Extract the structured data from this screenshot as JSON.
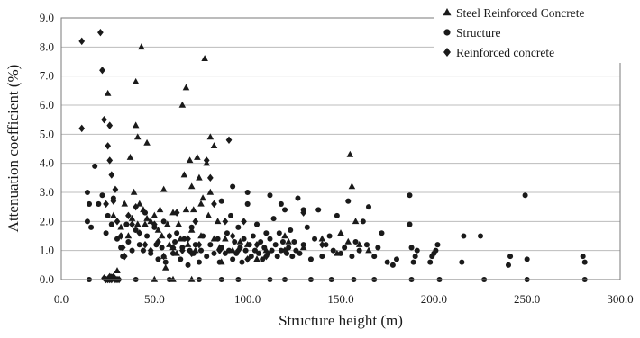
{
  "chart_data": {
    "type": "scatter",
    "xlabel": "Structure height (m)",
    "ylabel": "Attenuation coefficient (%)",
    "xlim": [
      0,
      300
    ],
    "ylim": [
      0,
      9
    ],
    "x_ticks": [
      "0.0",
      "50.0",
      "100.0",
      "150.0",
      "200.0",
      "250.0",
      "300.0"
    ],
    "y_ticks": [
      "0.0",
      "1.0",
      "2.0",
      "3.0",
      "4.0",
      "5.0",
      "6.0",
      "7.0",
      "8.0",
      "9.0"
    ],
    "grid": "horizontal",
    "legend_position": "top-right",
    "series": [
      {
        "name": "Steel Reinforced Concrete",
        "marker": "triangle",
        "color": "#1a1a1a",
        "points": [
          [
            25,
            6.4
          ],
          [
            37,
            4.2
          ],
          [
            38,
            2.1
          ],
          [
            39,
            3.0
          ],
          [
            40,
            5.3
          ],
          [
            40,
            6.8
          ],
          [
            41,
            4.9
          ],
          [
            41,
            1.9
          ],
          [
            42,
            2.6
          ],
          [
            43,
            8.0
          ],
          [
            44,
            2.4
          ],
          [
            45,
            1.9
          ],
          [
            46,
            4.7
          ],
          [
            46,
            2.1
          ],
          [
            48,
            2.0
          ],
          [
            50,
            2.2
          ],
          [
            52,
            1.7
          ],
          [
            53,
            2.4
          ],
          [
            54,
            1.5
          ],
          [
            55,
            3.1
          ],
          [
            55,
            0.8
          ],
          [
            57,
            1.9
          ],
          [
            58,
            1.2
          ],
          [
            60,
            2.3
          ],
          [
            60,
            1.1
          ],
          [
            62,
            0.9
          ],
          [
            63,
            1.9
          ],
          [
            64,
            1.4
          ],
          [
            65,
            6.0
          ],
          [
            66,
            3.6
          ],
          [
            67,
            6.6
          ],
          [
            67,
            2.4
          ],
          [
            68,
            1.2
          ],
          [
            69,
            4.1
          ],
          [
            70,
            1.7
          ],
          [
            70,
            3.2
          ],
          [
            71,
            2.4
          ],
          [
            72,
            1.0
          ],
          [
            73,
            4.2
          ],
          [
            74,
            3.5
          ],
          [
            75,
            2.6
          ],
          [
            75,
            1.5
          ],
          [
            76,
            2.8
          ],
          [
            77,
            7.6
          ],
          [
            78,
            4.0
          ],
          [
            79,
            2.2
          ],
          [
            80,
            4.9
          ],
          [
            80,
            3.0
          ],
          [
            82,
            4.6
          ],
          [
            82,
            1.4
          ],
          [
            84,
            2.0
          ],
          [
            85,
            1.1
          ],
          [
            88,
            1.4
          ],
          [
            92,
            1.0
          ],
          [
            96,
            1.3
          ],
          [
            100,
            1.2
          ],
          [
            105,
            0.7
          ],
          [
            110,
            1.0
          ],
          [
            120,
            1.5
          ],
          [
            122,
            1.3
          ],
          [
            130,
            1.1
          ],
          [
            140,
            1.4
          ],
          [
            148,
            0.9
          ],
          [
            150,
            1.6
          ],
          [
            154,
            1.3
          ],
          [
            155,
            4.3
          ],
          [
            156,
            3.2
          ],
          [
            158,
            2.0
          ],
          [
            160,
            1.2
          ],
          [
            165,
            1.0
          ],
          [
            50,
            0.0
          ],
          [
            60,
            0.0
          ],
          [
            70,
            0.0
          ],
          [
            30,
            0.3
          ],
          [
            32,
            1.8
          ],
          [
            34,
            2.6
          ],
          [
            36,
            1.5
          ],
          [
            28,
            2.2
          ],
          [
            56,
            0.4
          ],
          [
            86,
            0.6
          ]
        ]
      },
      {
        "name": "Structure",
        "marker": "circle",
        "color": "#1a1a1a",
        "points": [
          [
            14,
            2.0
          ],
          [
            14,
            3.0
          ],
          [
            15,
            2.6
          ],
          [
            16,
            1.8
          ],
          [
            18,
            3.9
          ],
          [
            20,
            2.6
          ],
          [
            22,
            2.9
          ],
          [
            24,
            1.6
          ],
          [
            25,
            2.2
          ],
          [
            27,
            1.9
          ],
          [
            28,
            2.8
          ],
          [
            30,
            1.4
          ],
          [
            30,
            0.0
          ],
          [
            32,
            1.1
          ],
          [
            33,
            0.8
          ],
          [
            35,
            1.9
          ],
          [
            36,
            1.3
          ],
          [
            38,
            1.0
          ],
          [
            40,
            1.7
          ],
          [
            42,
            1.2
          ],
          [
            44,
            1.0
          ],
          [
            45,
            2.3
          ],
          [
            46,
            1.5
          ],
          [
            48,
            0.9
          ],
          [
            50,
            1.8
          ],
          [
            51,
            1.2
          ],
          [
            52,
            0.7
          ],
          [
            54,
            1.1
          ],
          [
            55,
            2.0
          ],
          [
            56,
            0.6
          ],
          [
            58,
            1.5
          ],
          [
            60,
            0.9
          ],
          [
            61,
            1.3
          ],
          [
            62,
            1.6
          ],
          [
            64,
            0.7
          ],
          [
            65,
            1.1
          ],
          [
            66,
            1.4
          ],
          [
            68,
            0.5
          ],
          [
            69,
            1.0
          ],
          [
            70,
            1.8
          ],
          [
            71,
            0.9
          ],
          [
            72,
            1.2
          ],
          [
            74,
            0.6
          ],
          [
            75,
            1.0
          ],
          [
            76,
            1.5
          ],
          [
            78,
            0.8
          ],
          [
            80,
            1.2
          ],
          [
            82,
            0.9
          ],
          [
            84,
            1.4
          ],
          [
            85,
            0.6
          ],
          [
            86,
            1.1
          ],
          [
            88,
            0.9
          ],
          [
            89,
            1.6
          ],
          [
            90,
            1.0
          ],
          [
            91,
            2.2
          ],
          [
            92,
            0.7
          ],
          [
            93,
            1.3
          ],
          [
            94,
            0.9
          ],
          [
            95,
            1.8
          ],
          [
            96,
            1.1
          ],
          [
            97,
            0.6
          ],
          [
            98,
            1.4
          ],
          [
            99,
            1.0
          ],
          [
            100,
            2.6
          ],
          [
            101,
            1.2
          ],
          [
            102,
            0.8
          ],
          [
            103,
            1.5
          ],
          [
            104,
            1.0
          ],
          [
            105,
            1.9
          ],
          [
            106,
            0.9
          ],
          [
            107,
            1.3
          ],
          [
            108,
            0.7
          ],
          [
            109,
            1.1
          ],
          [
            110,
            1.6
          ],
          [
            111,
            0.9
          ],
          [
            112,
            1.4
          ],
          [
            113,
            1.0
          ],
          [
            114,
            2.1
          ],
          [
            115,
            1.2
          ],
          [
            116,
            0.8
          ],
          [
            117,
            1.6
          ],
          [
            118,
            1.0
          ],
          [
            119,
            1.3
          ],
          [
            120,
            2.4
          ],
          [
            121,
            0.9
          ],
          [
            122,
            1.1
          ],
          [
            123,
            1.7
          ],
          [
            124,
            0.8
          ],
          [
            125,
            1.3
          ],
          [
            126,
            1.0
          ],
          [
            127,
            2.8
          ],
          [
            128,
            0.9
          ],
          [
            130,
            1.2
          ],
          [
            132,
            1.8
          ],
          [
            134,
            0.7
          ],
          [
            136,
            1.4
          ],
          [
            138,
            2.4
          ],
          [
            140,
            0.8
          ],
          [
            142,
            1.2
          ],
          [
            144,
            1.5
          ],
          [
            146,
            1.0
          ],
          [
            148,
            2.2
          ],
          [
            150,
            0.9
          ],
          [
            152,
            1.1
          ],
          [
            154,
            2.7
          ],
          [
            156,
            0.8
          ],
          [
            158,
            1.3
          ],
          [
            160,
            1.0
          ],
          [
            162,
            2.0
          ],
          [
            164,
            1.2
          ],
          [
            165,
            2.5
          ],
          [
            168,
            0.8
          ],
          [
            170,
            1.1
          ],
          [
            172,
            1.6
          ],
          [
            175,
            0.6
          ],
          [
            178,
            0.5
          ],
          [
            180,
            0.7
          ],
          [
            187,
            2.9
          ],
          [
            187,
            1.9
          ],
          [
            188,
            1.1
          ],
          [
            189,
            0.6
          ],
          [
            190,
            0.8
          ],
          [
            191,
            1.0
          ],
          [
            198,
            0.6
          ],
          [
            199,
            0.8
          ],
          [
            200,
            0.9
          ],
          [
            201,
            1.0
          ],
          [
            202,
            1.2
          ],
          [
            215,
            0.6
          ],
          [
            216,
            1.5
          ],
          [
            225,
            1.5
          ],
          [
            240,
            0.5
          ],
          [
            241,
            0.8
          ],
          [
            249,
            2.9
          ],
          [
            250,
            0.7
          ],
          [
            280,
            0.8
          ],
          [
            281,
            0.6
          ],
          [
            15,
            0.0
          ],
          [
            40,
            0.0
          ],
          [
            58,
            0.0
          ],
          [
            74,
            0.0
          ],
          [
            86,
            0.0
          ],
          [
            95,
            0.0
          ],
          [
            112,
            0.0
          ],
          [
            120,
            0.0
          ],
          [
            134,
            0.0
          ],
          [
            145,
            0.0
          ],
          [
            157,
            0.0
          ],
          [
            168,
            0.0
          ],
          [
            188,
            0.0
          ],
          [
            203,
            0.0
          ],
          [
            227,
            0.0
          ],
          [
            250,
            0.0
          ],
          [
            281,
            0.0
          ],
          [
            100,
            3.0
          ],
          [
            112,
            2.9
          ],
          [
            118,
            2.6
          ],
          [
            130,
            2.4
          ],
          [
            86,
            2.7
          ],
          [
            92,
            3.2
          ]
        ]
      },
      {
        "name": "Reinforced concrete",
        "marker": "diamond",
        "color": "#1a1a1a",
        "points": [
          [
            11,
            8.2
          ],
          [
            11,
            5.2
          ],
          [
            21,
            8.5
          ],
          [
            22,
            7.2
          ],
          [
            23,
            5.5
          ],
          [
            24,
            2.6
          ],
          [
            25,
            4.6
          ],
          [
            26,
            4.1
          ],
          [
            26,
            5.3
          ],
          [
            27,
            3.6
          ],
          [
            28,
            2.7
          ],
          [
            29,
            3.1
          ],
          [
            30,
            2.0
          ],
          [
            32,
            1.5
          ],
          [
            33,
            1.1
          ],
          [
            34,
            0.8
          ],
          [
            36,
            2.2
          ],
          [
            38,
            1.9
          ],
          [
            40,
            2.5
          ],
          [
            42,
            1.6
          ],
          [
            45,
            1.2
          ],
          [
            48,
            1.0
          ],
          [
            50,
            1.9
          ],
          [
            52,
            1.3
          ],
          [
            55,
            0.8
          ],
          [
            58,
            1.5
          ],
          [
            60,
            1.1
          ],
          [
            62,
            2.3
          ],
          [
            65,
            1.0
          ],
          [
            68,
            1.4
          ],
          [
            70,
            0.9
          ],
          [
            72,
            2.0
          ],
          [
            74,
            1.2
          ],
          [
            78,
            4.1
          ],
          [
            80,
            3.5
          ],
          [
            82,
            2.6
          ],
          [
            85,
            1.0
          ],
          [
            88,
            2.0
          ],
          [
            90,
            4.8
          ],
          [
            92,
            1.5
          ],
          [
            95,
            1.0
          ],
          [
            98,
            2.0
          ],
          [
            100,
            0.7
          ],
          [
            105,
            1.2
          ],
          [
            110,
            0.8
          ],
          [
            120,
            1.0
          ],
          [
            130,
            2.3
          ],
          [
            140,
            1.2
          ],
          [
            25,
            0.0
          ],
          [
            26,
            0.1
          ],
          [
            27,
            0.0
          ],
          [
            28,
            0.05
          ],
          [
            29,
            0.0
          ],
          [
            30,
            0.0
          ],
          [
            24,
            0.0
          ],
          [
            28,
            0.1
          ],
          [
            23,
            0.05
          ],
          [
            31,
            0.0
          ],
          [
            26,
            0.0
          ],
          [
            27,
            0.08
          ]
        ]
      }
    ]
  }
}
